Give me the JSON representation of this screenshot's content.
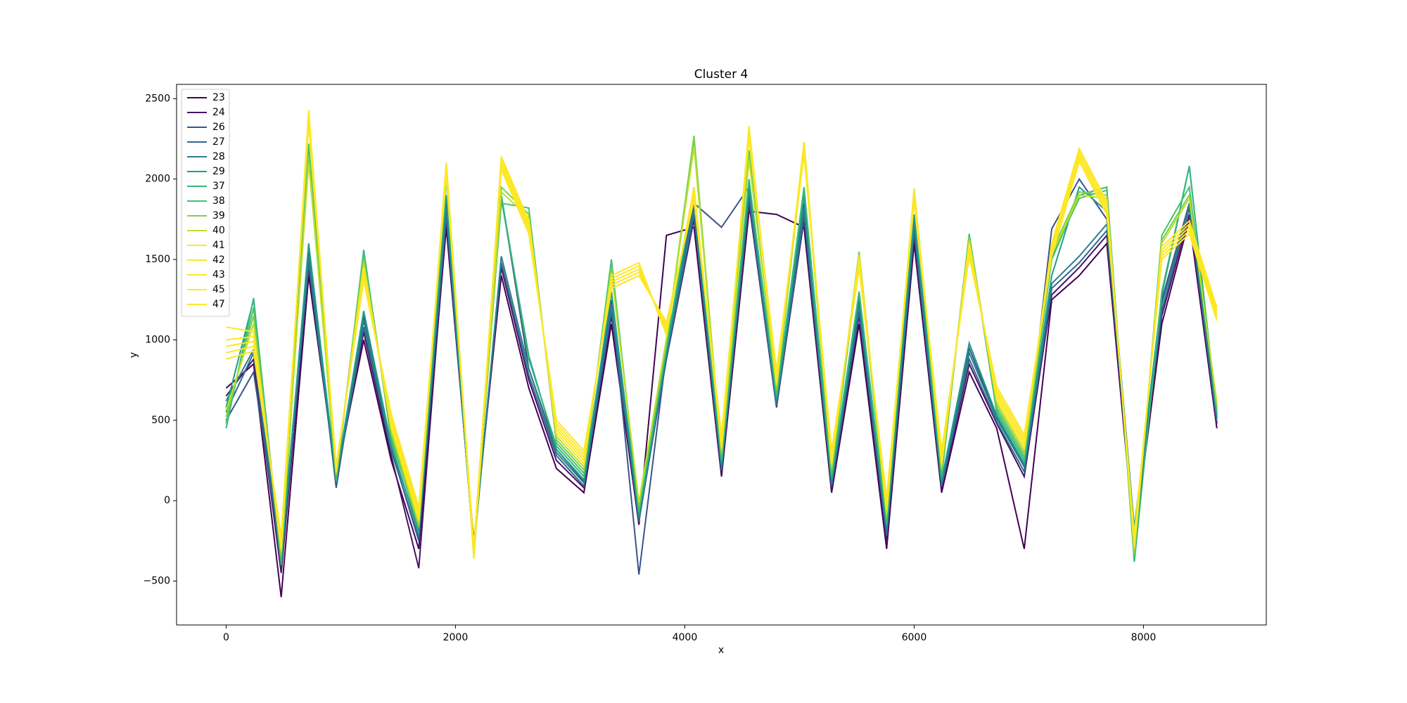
{
  "chart_data": {
    "type": "line",
    "title": "Cluster 4",
    "x_label": "x",
    "y_label": "y",
    "x": [
      0,
      240,
      480,
      720,
      960,
      1200,
      1440,
      1680,
      1920,
      2160,
      2400,
      2640,
      2880,
      3120,
      3360,
      3600,
      3840,
      4080,
      4320,
      4560,
      4800,
      5040,
      5280,
      5520,
      5760,
      6000,
      6240,
      6480,
      6720,
      6960,
      7200,
      7440,
      7680,
      7920,
      8160,
      8400,
      8640
    ],
    "xlim": [
      -432,
      9071
    ],
    "ylim": [
      -773,
      2589
    ],
    "xticks": [
      0,
      2000,
      4000,
      6000,
      8000
    ],
    "yticks": [
      {
        "value": -500,
        "label": "−500"
      },
      0,
      500,
      1000,
      1500,
      2000,
      2500
    ],
    "legend": "upper left",
    "series": [
      {
        "name": "23",
        "color": "#440154",
        "values": [
          700,
          850,
          -600,
          1400,
          150,
          1000,
          250,
          -300,
          1700,
          -250,
          1400,
          700,
          200,
          50,
          1100,
          -150,
          1650,
          1700,
          150,
          1800,
          1780,
          1700,
          50,
          1100,
          -300,
          1600,
          50,
          800,
          450,
          -300,
          1250,
          1400,
          1600,
          -250,
          1100,
          1750,
          450
        ]
      },
      {
        "name": "24",
        "color": "#471365",
        "values": [
          650,
          880,
          -450,
          1450,
          120,
          1050,
          280,
          -420,
          1750,
          -280,
          1450,
          750,
          250,
          80,
          1150,
          -120,
          880,
          1750,
          180,
          1850,
          580,
          1750,
          80,
          1150,
          -250,
          1650,
          80,
          850,
          480,
          150,
          1280,
          1450,
          1650,
          -220,
          1150,
          1780,
          480
        ]
      },
      {
        "name": "26",
        "color": "#3b528b",
        "values": [
          500,
          800,
          -350,
          1550,
          80,
          1150,
          320,
          -250,
          1850,
          -320,
          1900,
          820,
          320,
          120,
          1250,
          -460,
          920,
          1850,
          1700,
          1950,
          620,
          1850,
          120,
          1250,
          -200,
          1750,
          120,
          950,
          520,
          220,
          1690,
          2000,
          1750,
          -180,
          1250,
          1850,
          520
        ]
      },
      {
        "name": "27",
        "color": "#31688e",
        "values": [
          550,
          920,
          -400,
          1480,
          110,
          1080,
          310,
          -230,
          1780,
          -290,
          1480,
          780,
          280,
          90,
          1180,
          -130,
          890,
          1780,
          190,
          1880,
          590,
          1780,
          90,
          1180,
          -220,
          1680,
          90,
          880,
          490,
          180,
          1320,
          1480,
          1680,
          -210,
          1180,
          1820,
          490
        ]
      },
      {
        "name": "28",
        "color": "#287d8e",
        "values": [
          620,
          940,
          -320,
          1520,
          130,
          1120,
          330,
          -180,
          1820,
          -310,
          1520,
          820,
          300,
          110,
          1220,
          -110,
          910,
          1820,
          210,
          1920,
          610,
          1820,
          110,
          1220,
          -180,
          1720,
          110,
          920,
          510,
          210,
          1350,
          1520,
          1720,
          -190,
          1220,
          1840,
          510
        ]
      },
      {
        "name": "29",
        "color": "#1f9e89",
        "values": [
          580,
          1250,
          -380,
          1600,
          140,
          1180,
          350,
          -200,
          1900,
          -330,
          1880,
          900,
          320,
          130,
          1300,
          -90,
          930,
          1900,
          230,
          1980,
          630,
          1900,
          130,
          1280,
          -160,
          1780,
          130,
          980,
          530,
          230,
          1400,
          1950,
          1800,
          -170,
          1280,
          2080,
          530
        ]
      },
      {
        "name": "37",
        "color": "#35b779",
        "values": [
          450,
          1260,
          -400,
          2200,
          120,
          1560,
          380,
          -150,
          2050,
          -350,
          1900,
          880,
          340,
          150,
          1500,
          -70,
          950,
          1950,
          250,
          2000,
          650,
          1950,
          150,
          1300,
          -140,
          1900,
          150,
          1650,
          550,
          250,
          1500,
          1900,
          1950,
          -380,
          1300,
          2080,
          550
        ]
      },
      {
        "name": "38",
        "color": "#4ac16d",
        "values": [
          480,
          1200,
          -360,
          2220,
          150,
          1540,
          400,
          -170,
          2000,
          -300,
          1850,
          1820,
          360,
          170,
          1480,
          -50,
          970,
          2250,
          270,
          2180,
          670,
          2200,
          170,
          1500,
          -120,
          1940,
          170,
          1660,
          570,
          270,
          1520,
          1880,
          1930,
          -350,
          1650,
          1950,
          570
        ]
      },
      {
        "name": "39",
        "color": "#7ad151",
        "values": [
          520,
          1150,
          -340,
          2150,
          160,
          1500,
          420,
          -160,
          2100,
          -320,
          1950,
          1780,
          380,
          190,
          1450,
          -30,
          990,
          2270,
          290,
          2150,
          690,
          2230,
          190,
          1550,
          -100,
          1920,
          190,
          1640,
          590,
          290,
          1550,
          1920,
          1900,
          -330,
          1620,
          1900,
          590
        ]
      },
      {
        "name": "40",
        "color": "#bddf26",
        "values": [
          560,
          1100,
          -320,
          2100,
          170,
          1480,
          440,
          -140,
          2080,
          -340,
          1920,
          1760,
          400,
          210,
          1420,
          -10,
          1010,
          2200,
          310,
          2120,
          710,
          2180,
          210,
          1530,
          -80,
          1900,
          210,
          1620,
          610,
          310,
          1530,
          1900,
          1880,
          -310,
          1600,
          1880,
          610
        ]
      },
      {
        "name": "41",
        "color": "#fde725",
        "values": [
          1080,
          1050,
          -300,
          2430,
          180,
          1450,
          460,
          -120,
          2100,
          -360,
          2140,
          1740,
          420,
          230,
          1400,
          1480,
          1030,
          1950,
          330,
          2330,
          730,
          2230,
          230,
          1520,
          -60,
          1940,
          230,
          1600,
          630,
          330,
          1600,
          2190,
          1860,
          -290,
          1580,
          1740,
          1200
        ]
      },
      {
        "name": "42",
        "color": "#fde725",
        "values": [
          1000,
          1020,
          -280,
          2400,
          190,
          1430,
          480,
          -100,
          2080,
          -340,
          2120,
          1720,
          440,
          250,
          1380,
          1460,
          1050,
          1930,
          350,
          2310,
          750,
          2210,
          250,
          1500,
          -40,
          1920,
          250,
          1580,
          650,
          350,
          1580,
          2170,
          1840,
          -270,
          1560,
          1720,
          1180
        ]
      },
      {
        "name": "43",
        "color": "#fde725",
        "values": [
          960,
          990,
          -260,
          2380,
          200,
          1410,
          500,
          -80,
          2060,
          -320,
          2100,
          1700,
          460,
          270,
          1360,
          1440,
          1070,
          1910,
          370,
          2290,
          770,
          2190,
          270,
          1480,
          -20,
          1900,
          270,
          1560,
          670,
          370,
          1560,
          2150,
          1820,
          -250,
          1540,
          1700,
          1160
        ]
      },
      {
        "name": "45",
        "color": "#fde725",
        "values": [
          920,
          960,
          -240,
          2360,
          210,
          1390,
          520,
          -60,
          2040,
          -300,
          2080,
          1680,
          480,
          290,
          1340,
          1420,
          1090,
          1890,
          390,
          2270,
          790,
          2170,
          290,
          1460,
          0,
          1880,
          290,
          1540,
          690,
          390,
          1540,
          2130,
          1800,
          -230,
          1520,
          1680,
          1140
        ]
      },
      {
        "name": "47",
        "color": "#fde725",
        "values": [
          880,
          930,
          -220,
          2340,
          220,
          1370,
          540,
          -40,
          2020,
          -280,
          2060,
          1660,
          500,
          310,
          1320,
          1400,
          1110,
          1870,
          410,
          2250,
          810,
          2150,
          310,
          1440,
          20,
          1860,
          310,
          1520,
          710,
          410,
          1520,
          2110,
          1780,
          -210,
          1500,
          1660,
          1120
        ]
      }
    ]
  }
}
